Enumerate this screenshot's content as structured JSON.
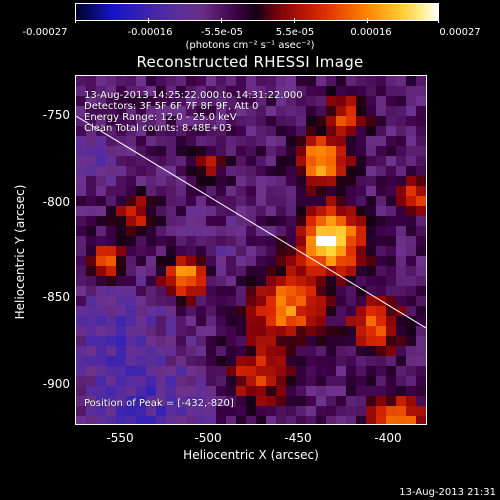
{
  "colorbar": {
    "ticks": [
      "-0.00027",
      "-0.00016",
      "-5.5e-05",
      "5.5e-05",
      "0.00016",
      "0.00027"
    ],
    "units": "(photons cm⁻² s⁻¹ asec⁻²)"
  },
  "title": "Reconstructed RHESSI Image",
  "info": {
    "time_range": "13-Aug-2013 14:25:22.000 to 14:31:22.000",
    "detectors": "Detectors: 3F 5F 6F 7F 8F 9F, Att 0",
    "energy": "Energy Range: 12.0 - 25.0 keV",
    "method": "Clean     Total counts: 8.48E+03",
    "peak": "Position of Peak = [-432,-820]"
  },
  "axes": {
    "xlabel": "Heliocentric X (arcsec)",
    "ylabel": "Heliocentric Y (arcsec)",
    "xticks": [
      "-550",
      "-500",
      "-450",
      "-400"
    ],
    "yticks": [
      "-750",
      "-800",
      "-850",
      "-900"
    ]
  },
  "timestamp": "13-Aug-2013 21:31"
}
